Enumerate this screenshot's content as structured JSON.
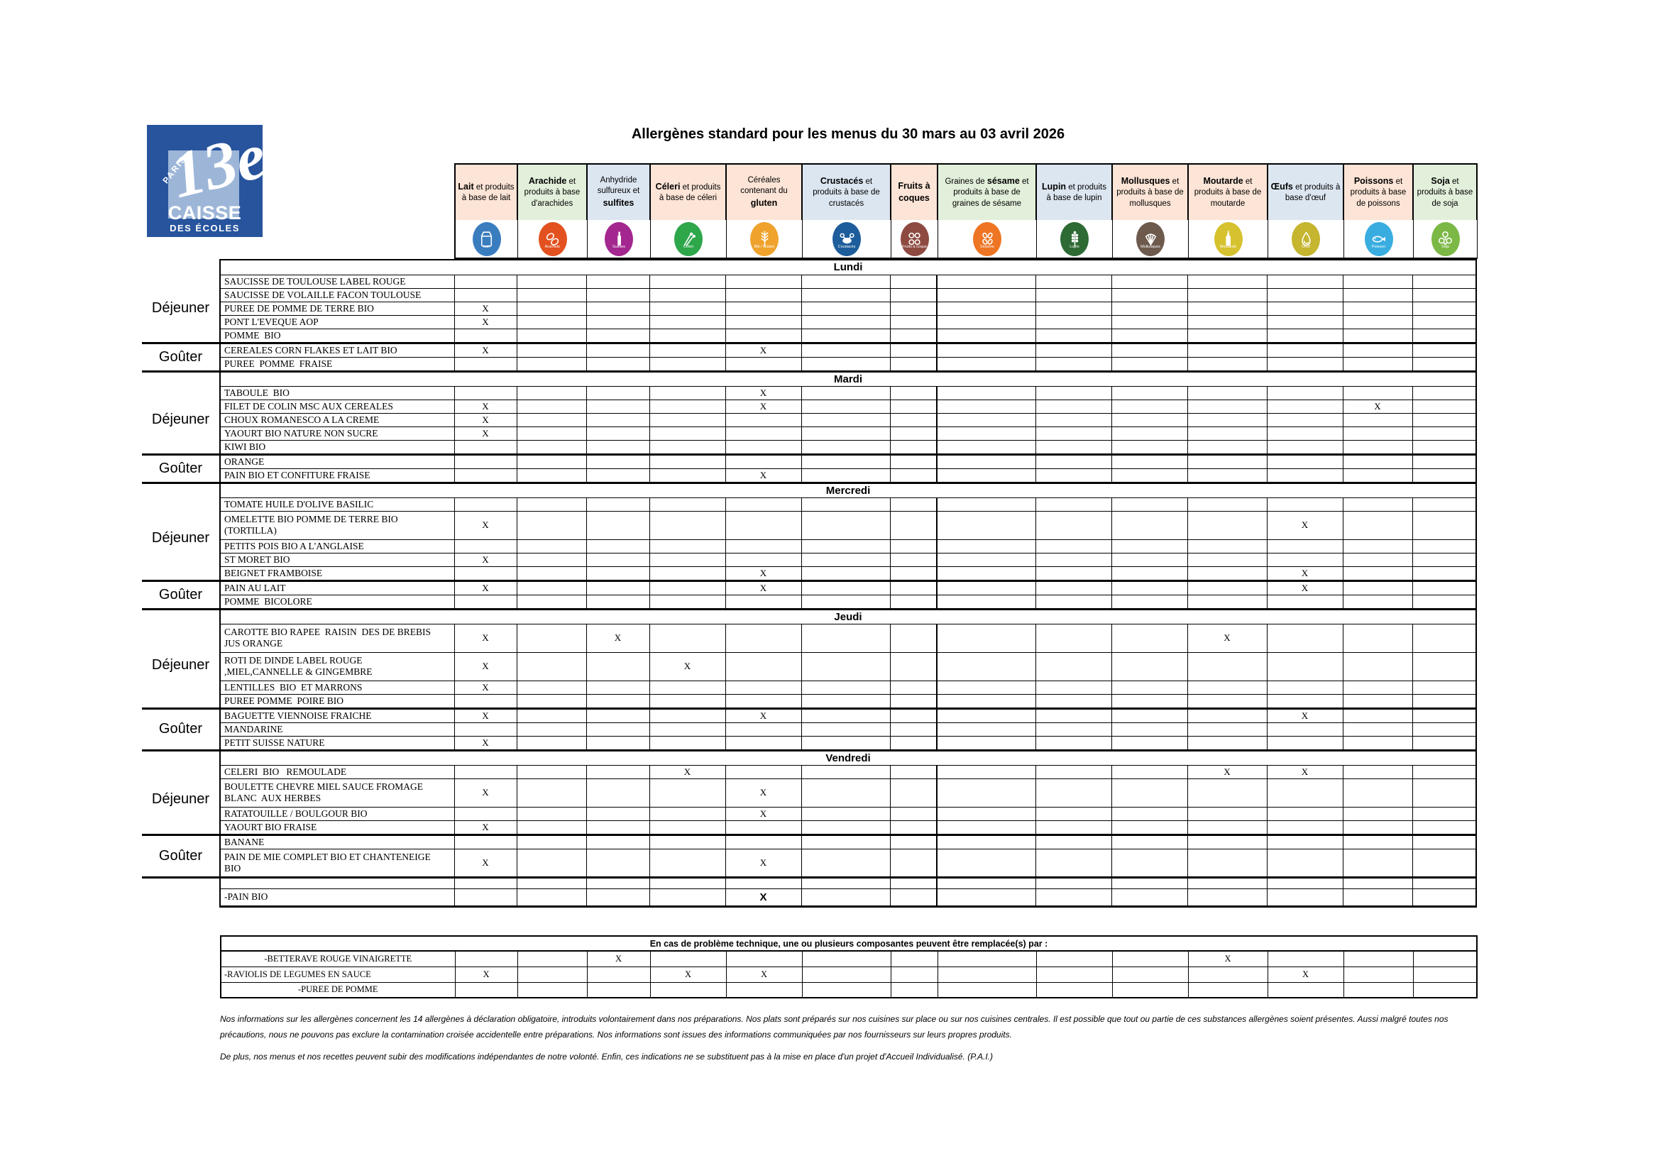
{
  "page": {
    "title": "Allergènes standard pour les menus du 30 mars au 03 avril 2026"
  },
  "logo": {
    "region": "PARIS",
    "arrondissement": "13e",
    "line1": "CAISSE",
    "line2": "DES ÉCOLES",
    "bg_color": "#27549d",
    "square_color": "#9db6d8"
  },
  "table": {
    "mark": "X",
    "allergen_columns": [
      {
        "segments": [
          [
            "Lait",
            1
          ],
          [
            " et produits à base de lait",
            0
          ]
        ],
        "bg": "#fce4d6",
        "icon": {
          "label": "Lait",
          "color": "#3a7dbf",
          "glyph": "milk"
        }
      },
      {
        "segments": [
          [
            "Arachide",
            1
          ],
          [
            " et produits à base d'arachides",
            0
          ]
        ],
        "bg": "#e2efda",
        "icon": {
          "label": "Arachide",
          "color": "#e2511f",
          "glyph": "peanut"
        }
      },
      {
        "segments": [
          [
            "Anhydride sulfureux et ",
            0
          ],
          [
            "sulfites",
            1
          ]
        ],
        "bg": "#dce6f1",
        "icon": {
          "label": "Sulfites",
          "color": "#a3278f",
          "glyph": "bottle"
        }
      },
      {
        "segments": [
          [
            "Céleri",
            1
          ],
          [
            " et produits à base de céleri",
            0
          ]
        ],
        "bg": "#fce4d6",
        "icon": {
          "label": "Céleri",
          "color": "#2ea64a",
          "glyph": "celery"
        }
      },
      {
        "segments": [
          [
            "Céréales contenant du ",
            0
          ],
          [
            "gluten",
            1
          ]
        ],
        "bg": "#fce4d6",
        "icon": {
          "label": "Blé / Gluten",
          "color": "#efa32d",
          "glyph": "wheat"
        }
      },
      {
        "segments": [
          [
            "Crustacés",
            1
          ],
          [
            " et produits à base de crustacés",
            0
          ]
        ],
        "bg": "#dce6f1",
        "icon": {
          "label": "Crustacés",
          "color": "#1d5d9b",
          "glyph": "crab"
        }
      },
      {
        "segments": [
          [
            "Fruits à coques",
            1
          ]
        ],
        "bg": "#fce4d6",
        "icon": {
          "label": "Fruits à coque",
          "color": "#8e4a41",
          "glyph": "nuts"
        }
      },
      {
        "segments": [
          [
            "Graines de ",
            0
          ],
          [
            "sésame",
            1
          ],
          [
            " et produits à base de graines de sésame",
            0
          ]
        ],
        "bg": "#e2efda",
        "icon": {
          "label": "Sésame",
          "color": "#ee7523",
          "glyph": "sesame"
        }
      },
      {
        "segments": [
          [
            "Lupin",
            1
          ],
          [
            " et produits à base de lupin",
            0
          ]
        ],
        "bg": "#dce6f1",
        "icon": {
          "label": "Lupin",
          "color": "#2d6a34",
          "glyph": "lupin"
        }
      },
      {
        "segments": [
          [
            "Mollusques",
            1
          ],
          [
            " et produits à base de mollusques",
            0
          ]
        ],
        "bg": "#fce4d6",
        "icon": {
          "label": "Mollusques",
          "color": "#6e5a4d",
          "glyph": "shell"
        }
      },
      {
        "segments": [
          [
            "Moutarde",
            1
          ],
          [
            " et produits à base de moutarde",
            0
          ]
        ],
        "bg": "#fce4d6",
        "icon": {
          "label": "Moutarde",
          "color": "#d6c22e",
          "glyph": "mustard"
        }
      },
      {
        "segments": [
          [
            "Œufs",
            1
          ],
          [
            " et produits à base d'œuf",
            0
          ]
        ],
        "bg": "#dce6f1",
        "icon": {
          "label": "Oeuf",
          "color": "#c5b52f",
          "glyph": "egg"
        }
      },
      {
        "segments": [
          [
            "Poissons",
            1
          ],
          [
            " et produits à base de poissons",
            0
          ]
        ],
        "bg": "#fce4d6",
        "icon": {
          "label": "Poisson",
          "color": "#39ade0",
          "glyph": "fish"
        }
      },
      {
        "segments": [
          [
            "Soja",
            1
          ],
          [
            " et produits à base de soja",
            0
          ]
        ],
        "bg": "#e2efda",
        "icon": {
          "label": "Soja",
          "color": "#7cb845",
          "glyph": "soy"
        }
      }
    ],
    "days": [
      {
        "name": "Lundi",
        "groups": [
          {
            "meal": "Déjeuner",
            "rows": [
              {
                "dish": "SAUCISSE DE TOULOUSE LABEL ROUGE",
                "marks": []
              },
              {
                "dish": "SAUCISSE DE VOLAILLE FACON TOULOUSE",
                "marks": []
              },
              {
                "dish": "PUREE DE POMME DE TERRE BIO",
                "marks": [
                  1
                ]
              },
              {
                "dish": "PONT L'EVEQUE AOP",
                "marks": [
                  1
                ]
              },
              {
                "dish": "POMME  BIO",
                "marks": []
              }
            ]
          },
          {
            "meal": "Goûter",
            "rows": [
              {
                "dish": "CEREALES CORN FLAKES ET LAIT BIO",
                "marks": [
                  1,
                  5
                ]
              },
              {
                "dish": "PUREE  POMME  FRAISE",
                "marks": []
              }
            ]
          }
        ]
      },
      {
        "name": "Mardi",
        "groups": [
          {
            "meal": "Déjeuner",
            "rows": [
              {
                "dish": "TABOULE  BIO",
                "marks": [
                  5
                ]
              },
              {
                "dish": "FILET DE COLIN MSC AUX CEREALES",
                "marks": [
                  1,
                  5,
                  13
                ]
              },
              {
                "dish": "CHOUX ROMANESCO A LA CREME",
                "marks": [
                  1
                ]
              },
              {
                "dish": "YAOURT BIO NATURE NON SUCRE",
                "marks": [
                  1
                ]
              },
              {
                "dish": "KIWI BIO",
                "marks": []
              }
            ]
          },
          {
            "meal": "Goûter",
            "rows": [
              {
                "dish": "ORANGE",
                "marks": []
              },
              {
                "dish": "PAIN BIO ET CONFITURE FRAISE",
                "marks": [
                  5
                ]
              }
            ]
          }
        ]
      },
      {
        "name": "Mercredi",
        "groups": [
          {
            "meal": "Déjeuner",
            "rows": [
              {
                "dish": "TOMATE HUILE D'OLIVE BASILIC",
                "marks": []
              },
              {
                "dish": "OMELETTE BIO POMME DE TERRE BIO\n(TORTILLA)",
                "marks": [
                  1,
                  12
                ]
              },
              {
                "dish": "PETITS POIS BIO A L'ANGLAISE",
                "marks": []
              },
              {
                "dish": "ST MORET BIO",
                "marks": [
                  1
                ]
              },
              {
                "dish": "BEIGNET FRAMBOISE",
                "marks": [
                  5,
                  12
                ]
              }
            ]
          },
          {
            "meal": "Goûter",
            "rows": [
              {
                "dish": "PAIN AU LAIT",
                "marks": [
                  1,
                  5,
                  12
                ]
              },
              {
                "dish": "POMME  BICOLORE",
                "marks": []
              }
            ]
          }
        ]
      },
      {
        "name": "Jeudi",
        "groups": [
          {
            "meal": "Déjeuner",
            "rows": [
              {
                "dish": "CAROTTE BIO RAPEE  RAISIN  DES DE BREBIS\nJUS ORANGE",
                "marks": [
                  1,
                  3,
                  11
                ]
              },
              {
                "dish": "ROTI DE DINDE LABEL ROUGE\n,MIEL,CANNELLE & GINGEMBRE",
                "marks": [
                  1,
                  4
                ]
              },
              {
                "dish": "LENTILLES  BIO  ET MARRONS",
                "marks": [
                  1
                ]
              },
              {
                "dish": "PUREE POMME  POIRE BIO",
                "marks": []
              }
            ]
          },
          {
            "meal": "Goûter",
            "rows": [
              {
                "dish": "BAGUETTE VIENNOISE FRAICHE",
                "marks": [
                  1,
                  5,
                  12
                ]
              },
              {
                "dish": "MANDARINE",
                "marks": []
              },
              {
                "dish": "PETIT SUISSE NATURE",
                "marks": [
                  1
                ]
              }
            ]
          }
        ]
      },
      {
        "name": "Vendredi",
        "groups": [
          {
            "meal": "Déjeuner",
            "rows": [
              {
                "dish": "CELERI  BIO   REMOULADE",
                "marks": [
                  4,
                  11,
                  12
                ]
              },
              {
                "dish": "BOULETTE CHEVRE MIEL SAUCE FROMAGE\nBLANC  AUX HERBES",
                "marks": [
                  1,
                  5
                ]
              },
              {
                "dish": "RATATOUILLE / BOULGOUR BIO",
                "marks": [
                  5
                ]
              },
              {
                "dish": "YAOURT BIO FRAISE",
                "marks": [
                  1
                ]
              }
            ]
          },
          {
            "meal": "Goûter",
            "rows": [
              {
                "dish": "BANANE",
                "marks": []
              },
              {
                "dish": "PAIN DE MIE COMPLET BIO ET CHANTENEIGE\nBIO",
                "marks": [
                  1,
                  5
                ]
              }
            ]
          },
          {
            "meal": "",
            "rows": [
              {
                "dish": "",
                "marks": []
              },
              {
                "dish": "-PAIN BIO",
                "marks": [
                  5
                ],
                "big": true
              }
            ]
          }
        ]
      }
    ]
  },
  "replacement": {
    "title": "En cas de problème technique, une ou plusieurs composantes peuvent être remplacée(s) par :",
    "rows": [
      {
        "dish": "-BETTERAVE ROUGE VINAIGRETTE",
        "marks": [
          3,
          11
        ],
        "align": "center"
      },
      {
        "dish": "-RAVIOLIS DE LEGUMES EN SAUCE",
        "marks": [
          1,
          4,
          5,
          12
        ],
        "align": "left"
      },
      {
        "dish": "-PUREE DE POMME",
        "marks": [],
        "align": "center"
      }
    ]
  },
  "footer": {
    "p1": "Nos informations sur les allergènes concernent les 14 allergènes à déclaration obligatoire, introduits volontairement dans nos préparations. Nos plats sont préparés sur nos cuisines sur place ou sur nos cuisines centrales. Il est possible que tout ou partie de ces substances allergènes soient présentes. Aussi malgré toutes nos précautions, nous ne pouvons pas exclure la contamination croisée accidentelle entre préparations. Nos informations sont issues des informations communiquées par nos fournisseurs sur leurs propres produits.",
    "p2": "De plus, nos menus et nos recettes peuvent subir des modifications indépendantes de notre volonté. Enfin, ces indications ne se substituent pas à la mise en place d'un projet d'Accueil Individualisé. (P.A.I.)"
  }
}
